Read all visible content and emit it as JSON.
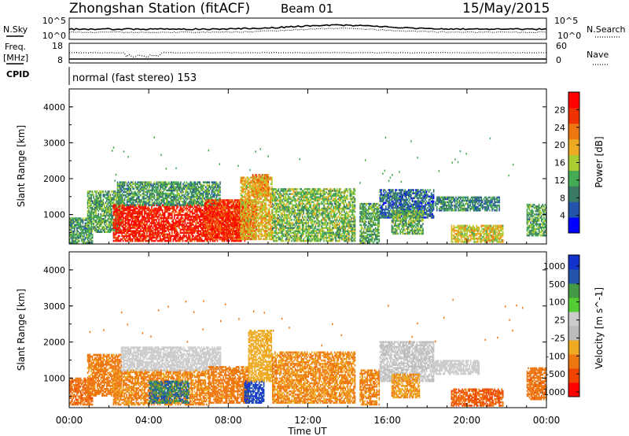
{
  "header": {
    "title": "Zhongshan Station (fitACF)",
    "beam": "Beam 01",
    "date": "15/May/2015"
  },
  "noise_panel": {
    "left_label": "N.Sky",
    "right_label": "N.Search",
    "ticks": [
      "10^5",
      "10^0"
    ]
  },
  "freq_panel": {
    "left_label_1": "Freq.",
    "left_label_2": "[MHz]",
    "left_ticks": [
      "18",
      "8"
    ],
    "right_label": "Nave",
    "right_ticks": [
      "60",
      "0"
    ]
  },
  "cpid_panel": {
    "label": "CPID",
    "text": "normal (fast stereo) 153"
  },
  "colors": {
    "power": [
      "#0000ff",
      "#2255aa",
      "#3a7a64",
      "#44aa55",
      "#aacc33",
      "#eeaa22",
      "#ee7711",
      "#ee3300",
      "#ff0000"
    ],
    "velocity": [
      "#ff0000",
      "#ee4400",
      "#ee7711",
      "#eeaa22",
      "#bbbbbb",
      "#cccccc",
      "#55cc33",
      "#449944",
      "#2255aa",
      "#1133cc"
    ]
  },
  "chart_data": [
    {
      "type": "heatmap",
      "name": "power",
      "ylabel": "Slant Range [km]",
      "xlabel": "",
      "x_ticks": [
        "00:00",
        "04:00",
        "08:00",
        "12:00",
        "16:00",
        "20:00",
        "00:00"
      ],
      "y_ticks": [
        "1000",
        "2000",
        "3000",
        "4000"
      ],
      "ylim": [
        180,
        4500
      ],
      "xlim_hours": [
        0,
        24
      ],
      "colorbar_label": "Power [dB]",
      "colorbar_ticks": [
        "4",
        "8",
        "12",
        "16",
        "20",
        "24",
        "28"
      ],
      "colorbar_range": [
        0,
        32
      ],
      "regions": [
        {
          "t0": 0.0,
          "t1": 1.2,
          "r0": 200,
          "r1": 900,
          "v": 11
        },
        {
          "t0": 0.9,
          "t1": 2.6,
          "r0": 500,
          "r1": 1650,
          "v": 12
        },
        {
          "t0": 2.2,
          "t1": 8.8,
          "r0": 250,
          "r1": 1250,
          "v": 29
        },
        {
          "t0": 2.4,
          "t1": 7.6,
          "r0": 1250,
          "r1": 1900,
          "v": 11
        },
        {
          "t0": 6.8,
          "t1": 9.4,
          "r0": 300,
          "r1": 1400,
          "v": 27
        },
        {
          "t0": 8.6,
          "t1": 10.2,
          "r0": 300,
          "r1": 2050,
          "v": 19
        },
        {
          "t0": 9.2,
          "t1": 10.0,
          "r0": 1500,
          "r1": 2100,
          "v": 21
        },
        {
          "t0": 10.2,
          "t1": 14.4,
          "r0": 250,
          "r1": 1700,
          "v": 14
        },
        {
          "t0": 14.6,
          "t1": 15.6,
          "r0": 200,
          "r1": 1300,
          "v": 12
        },
        {
          "t0": 15.6,
          "t1": 18.3,
          "r0": 900,
          "r1": 1700,
          "v": 7
        },
        {
          "t0": 16.2,
          "t1": 17.8,
          "r0": 450,
          "r1": 1100,
          "v": 13
        },
        {
          "t0": 18.4,
          "t1": 20.4,
          "r0": 1100,
          "r1": 1500,
          "v": 10
        },
        {
          "t0": 19.2,
          "t1": 21.8,
          "r0": 220,
          "r1": 700,
          "v": 18
        },
        {
          "t0": 20.4,
          "t1": 21.6,
          "r0": 1100,
          "r1": 1500,
          "v": 9
        },
        {
          "t0": 23.0,
          "t1": 24.0,
          "r0": 400,
          "r1": 1300,
          "v": 12
        }
      ]
    },
    {
      "type": "heatmap",
      "name": "velocity",
      "ylabel": "Slant Range [km]",
      "xlabel": "Time UT",
      "x_ticks": [
        "00:00",
        "04:00",
        "08:00",
        "12:00",
        "16:00",
        "20:00",
        "00:00"
      ],
      "y_ticks": [
        "1000",
        "2000",
        "3000",
        "4000"
      ],
      "ylim": [
        180,
        4500
      ],
      "xlim_hours": [
        0,
        24
      ],
      "colorbar_label": "Velocity [m s^-1]",
      "colorbar_ticks": [
        "1000",
        "500",
        "100",
        "25",
        "-25",
        "-100",
        "-500",
        "-1000"
      ],
      "regions": [
        {
          "t0": 0.0,
          "t1": 1.2,
          "r0": 250,
          "r1": 1000,
          "v": -200
        },
        {
          "t0": 0.9,
          "t1": 2.6,
          "r0": 500,
          "r1": 1650,
          "v": -150
        },
        {
          "t0": 2.2,
          "t1": 7.0,
          "r0": 250,
          "r1": 1200,
          "v": -120
        },
        {
          "t0": 4.0,
          "t1": 6.0,
          "r0": 300,
          "r1": 900,
          "v": 300
        },
        {
          "t0": 2.6,
          "t1": 7.6,
          "r0": 1200,
          "r1": 1850,
          "v": 10
        },
        {
          "t0": 7.0,
          "t1": 9.0,
          "r0": 300,
          "r1": 1300,
          "v": -150
        },
        {
          "t0": 8.8,
          "t1": 9.8,
          "r0": 300,
          "r1": 900,
          "v": 800
        },
        {
          "t0": 9.0,
          "t1": 10.2,
          "r0": 900,
          "r1": 2300,
          "v": -60
        },
        {
          "t0": 10.2,
          "t1": 14.4,
          "r0": 300,
          "r1": 1700,
          "v": -110
        },
        {
          "t0": 14.6,
          "t1": 15.6,
          "r0": 250,
          "r1": 1200,
          "v": -130
        },
        {
          "t0": 15.6,
          "t1": 18.3,
          "r0": 900,
          "r1": 2000,
          "v": 0
        },
        {
          "t0": 16.2,
          "t1": 17.6,
          "r0": 450,
          "r1": 1100,
          "v": -90
        },
        {
          "t0": 18.3,
          "t1": 20.6,
          "r0": 1100,
          "r1": 1500,
          "v": 5
        },
        {
          "t0": 19.2,
          "t1": 21.8,
          "r0": 220,
          "r1": 700,
          "v": -250
        },
        {
          "t0": 23.0,
          "t1": 24.0,
          "r0": 400,
          "r1": 1300,
          "v": -180
        }
      ]
    }
  ]
}
